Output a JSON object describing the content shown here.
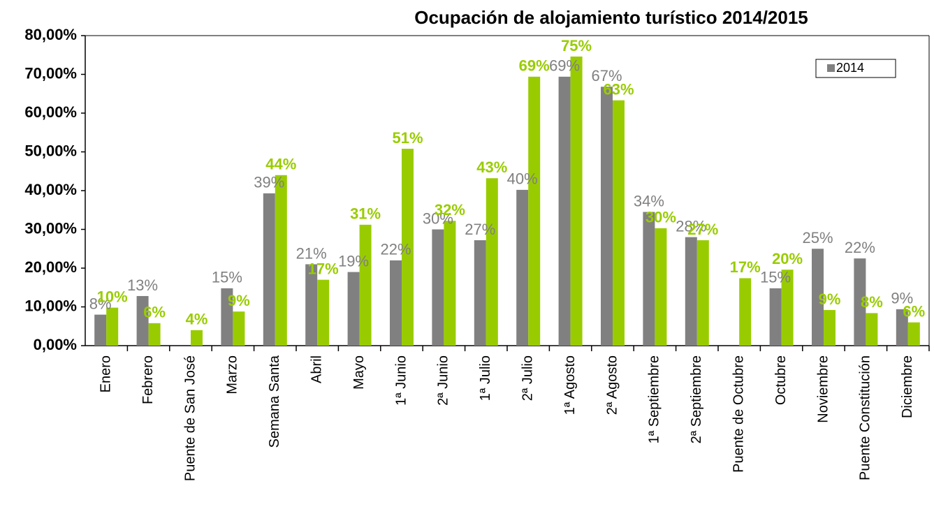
{
  "chart_data": {
    "type": "bar",
    "title": "Ocupación de alojamiento turístico 2014/2015",
    "categories": [
      "Enero",
      "Febrero",
      "Puente de San José",
      "Marzo",
      "Semana Santa",
      "Abril",
      "Mayo",
      "1ª Junio",
      "2ª Junio",
      "1ª Julio",
      "2ª Julio",
      "1ª Agosto",
      "2ª Agosto",
      "1ª Septiembre",
      "2ª Septiembre",
      "Puente de Octubre",
      "Octubre",
      "Noviembre",
      "Puente Constitución",
      "Diciembre"
    ],
    "series": [
      {
        "name": "2014",
        "color": "#808080",
        "values": [
          8.0,
          12.8,
          null,
          14.8,
          39.3,
          21.0,
          19.0,
          22.0,
          30.0,
          27.2,
          40.2,
          69.4,
          66.8,
          34.5,
          28.0,
          null,
          14.8,
          25.0,
          22.5,
          9.4
        ],
        "value_labels": [
          "8%",
          "13%",
          null,
          "15%",
          "39%",
          "21%",
          "19%",
          "22%",
          "30%",
          "27%",
          "40%",
          "69%",
          "67%",
          "34%",
          "28%",
          null,
          "15%",
          "25%",
          "22%",
          "9%"
        ]
      },
      {
        "color": "#99cc00",
        "values": [
          9.8,
          5.8,
          4.0,
          8.8,
          44.0,
          17.0,
          31.2,
          50.8,
          32.2,
          43.2,
          69.4,
          74.6,
          63.3,
          30.3,
          27.2,
          17.4,
          19.6,
          9.2,
          8.4,
          6.0
        ],
        "value_labels": [
          "10%",
          "6%",
          "4%",
          "9%",
          "44%",
          "17%",
          "31%",
          "51%",
          "32%",
          "43%",
          "69%",
          "75%",
          "63%",
          "30%",
          "27%",
          "17%",
          "20%",
          "9%",
          "8%",
          "6%"
        ]
      }
    ],
    "ylim": [
      0,
      80
    ],
    "yticks": [
      {
        "value": 0,
        "label": "0,00%"
      },
      {
        "value": 10,
        "label": "10,00%"
      },
      {
        "value": 20,
        "label": "20,00%"
      },
      {
        "value": 30,
        "label": "30,00%"
      },
      {
        "value": 40,
        "label": "40,00%"
      },
      {
        "value": 50,
        "label": "50,00%"
      },
      {
        "value": 60,
        "label": "60,00%"
      },
      {
        "value": 70,
        "label": "70,00%"
      },
      {
        "value": 80,
        "label": "80,00%"
      }
    ],
    "legend": "top-right"
  }
}
